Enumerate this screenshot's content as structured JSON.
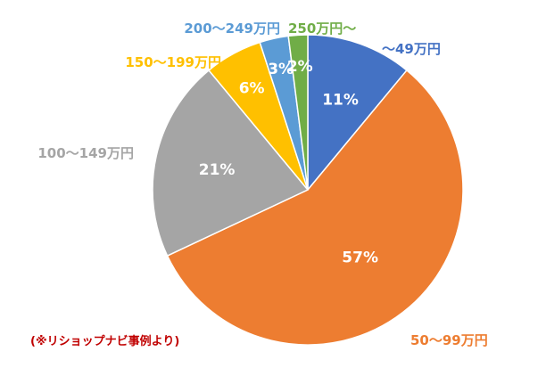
{
  "chart_data": {
    "type": "pie",
    "title": "",
    "series": [
      {
        "name": "〜49万円",
        "value": 11,
        "label": "11%",
        "color": "#4472c4"
      },
      {
        "name": "50〜99万円",
        "value": 57,
        "label": "57%",
        "color": "#ed7d31"
      },
      {
        "name": "100〜149万円",
        "value": 21,
        "label": "21%",
        "color": "#a5a5a5"
      },
      {
        "name": "150〜199万円",
        "value": 6,
        "label": "6%",
        "color": "#ffc000"
      },
      {
        "name": "200〜249万円",
        "value": 3,
        "label": "3%",
        "color": "#5b9bd5"
      },
      {
        "name": "250万円〜",
        "value": 2,
        "label": "2%",
        "color": "#70ad47"
      }
    ],
    "value_unit": "%",
    "start_angle_deg": 0,
    "direction": "clockwise"
  },
  "footnote": "(※リショップナビ事例より)"
}
